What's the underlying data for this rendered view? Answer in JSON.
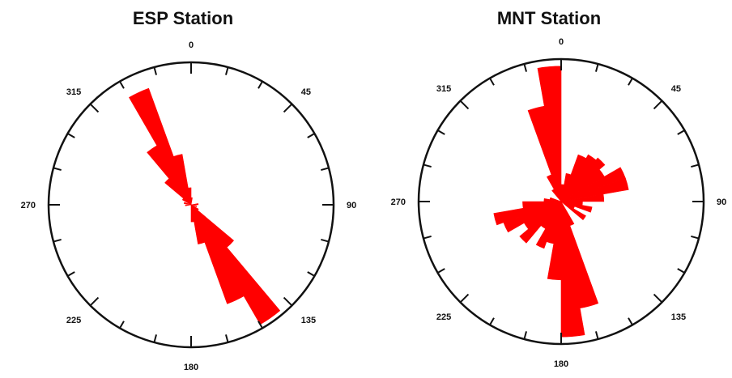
{
  "chart_data": [
    {
      "type": "rose",
      "title": "ESP Station",
      "angle_unit": "degrees",
      "direction": "clockwise from north",
      "bin_width": 10,
      "tick_labels": [
        "0",
        "45",
        "90",
        "135",
        "180",
        "225",
        "270",
        "315"
      ],
      "color": "#ff0000",
      "bins": [
        {
          "start": 300,
          "end": 310,
          "length": 0.07
        },
        {
          "start": 310,
          "end": 320,
          "length": 0.24
        },
        {
          "start": 320,
          "end": 330,
          "length": 0.48
        },
        {
          "start": 330,
          "end": 340,
          "length": 0.87
        },
        {
          "start": 340,
          "end": 350,
          "length": 0.36
        },
        {
          "start": 350,
          "end": 360,
          "length": 0.12
        },
        {
          "start": 120,
          "end": 130,
          "length": 0.06
        },
        {
          "start": 130,
          "end": 140,
          "length": 0.39
        },
        {
          "start": 140,
          "end": 150,
          "length": 0.97
        },
        {
          "start": 150,
          "end": 160,
          "length": 0.74
        },
        {
          "start": 160,
          "end": 170,
          "length": 0.28
        },
        {
          "start": 170,
          "end": 180,
          "length": 0.12
        },
        {
          "start": 0,
          "end": 10,
          "length": 0.05
        },
        {
          "start": 80,
          "end": 90,
          "length": 0.05
        },
        {
          "start": 100,
          "end": 110,
          "length": 0.04
        },
        {
          "start": 260,
          "end": 270,
          "length": 0.04
        },
        {
          "start": 280,
          "end": 290,
          "length": 0.05
        }
      ]
    },
    {
      "type": "rose",
      "title": "MNT Station",
      "angle_unit": "degrees",
      "direction": "clockwise from north",
      "bin_width": 10,
      "tick_labels": [
        "0",
        "45",
        "90",
        "135",
        "180",
        "225",
        "270",
        "315"
      ],
      "color": "#ff0000",
      "bins": [
        {
          "start": 350,
          "end": 360,
          "length": 0.95
        },
        {
          "start": 340,
          "end": 350,
          "length": 0.68
        },
        {
          "start": 330,
          "end": 340,
          "length": 0.2
        },
        {
          "start": 320,
          "end": 330,
          "length": 0.1
        },
        {
          "start": 0,
          "end": 10,
          "length": 0.12
        },
        {
          "start": 10,
          "end": 20,
          "length": 0.2
        },
        {
          "start": 20,
          "end": 30,
          "length": 0.35
        },
        {
          "start": 30,
          "end": 40,
          "length": 0.38
        },
        {
          "start": 40,
          "end": 50,
          "length": 0.4
        },
        {
          "start": 50,
          "end": 60,
          "length": 0.35
        },
        {
          "start": 60,
          "end": 70,
          "length": 0.48
        },
        {
          "start": 70,
          "end": 80,
          "length": 0.48
        },
        {
          "start": 80,
          "end": 90,
          "length": 0.3
        },
        {
          "start": 90,
          "end": 100,
          "length": 0.15
        },
        {
          "start": 100,
          "end": 110,
          "length": 0.22
        },
        {
          "start": 110,
          "end": 120,
          "length": 0.1
        },
        {
          "start": 120,
          "end": 130,
          "length": 0.2
        },
        {
          "start": 150,
          "end": 160,
          "length": 0.18
        },
        {
          "start": 160,
          "end": 170,
          "length": 0.76
        },
        {
          "start": 170,
          "end": 180,
          "length": 0.95
        },
        {
          "start": 180,
          "end": 190,
          "length": 0.55
        },
        {
          "start": 190,
          "end": 200,
          "length": 0.3
        },
        {
          "start": 200,
          "end": 210,
          "length": 0.35
        },
        {
          "start": 210,
          "end": 220,
          "length": 0.22
        },
        {
          "start": 220,
          "end": 230,
          "length": 0.38
        },
        {
          "start": 230,
          "end": 240,
          "length": 0.3
        },
        {
          "start": 240,
          "end": 250,
          "length": 0.43
        },
        {
          "start": 250,
          "end": 260,
          "length": 0.48
        },
        {
          "start": 260,
          "end": 270,
          "length": 0.27
        },
        {
          "start": 270,
          "end": 280,
          "length": 0.12
        },
        {
          "start": 280,
          "end": 290,
          "length": 0.08
        }
      ]
    }
  ]
}
